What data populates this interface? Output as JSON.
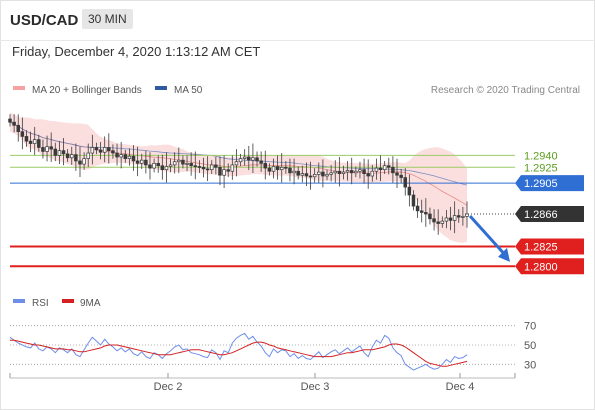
{
  "header": {
    "symbol": "USD/CAD",
    "timeframe": "30 MIN"
  },
  "date_line": "Friday, December 4, 2020 1:13:12 AM CET",
  "legend": {
    "ma_bb": "MA 20 + Bollinger Bands",
    "ma50": "MA 50",
    "rsi": "RSI",
    "rsi_ma": "9MA"
  },
  "copyright": "Research © 2020 Trading Central",
  "colors": {
    "bb": "#f4a3a3",
    "ma50": "#2f5a9e",
    "support": "#e0201e",
    "resistance": "#9ccc65",
    "pivot": "#2f6ed3",
    "current": "#333333",
    "candle": "#3a3a3a",
    "rsi": "#6e8ee8",
    "rsi_ma": "#d42020"
  },
  "chart_data": [
    {
      "type": "candlestick",
      "title": "USD/CAD 30 MIN",
      "ylim": [
        1.277,
        1.301
      ],
      "x_ticks": [
        "Dec 2",
        "Dec 3",
        "Dec 4"
      ],
      "levels": [
        {
          "name": "resistance-2",
          "value": 1.294,
          "label": "1.2940",
          "style": "resistance"
        },
        {
          "name": "resistance-1",
          "value": 1.2925,
          "label": "1.2925",
          "style": "resistance"
        },
        {
          "name": "pivot",
          "value": 1.2905,
          "label": "1.2905",
          "style": "pivot"
        },
        {
          "name": "last-price",
          "value": 1.2866,
          "label": "1.2866",
          "style": "current"
        },
        {
          "name": "support-1",
          "value": 1.2825,
          "label": "1.2825",
          "style": "support"
        },
        {
          "name": "support-2",
          "value": 1.28,
          "label": "1.2800",
          "style": "support"
        }
      ],
      "close": [
        1.2982,
        1.2978,
        1.297,
        1.2964,
        1.2958,
        1.2955,
        1.296,
        1.295,
        1.2945,
        1.2951,
        1.2948,
        1.294,
        1.2946,
        1.2942,
        1.2937,
        1.2941,
        1.2933,
        1.2929,
        1.2936,
        1.2943,
        1.295,
        1.2947,
        1.2944,
        1.295,
        1.2946,
        1.2943,
        1.2938,
        1.2941,
        1.2936,
        1.2939,
        1.2933,
        1.293,
        1.2934,
        1.2928,
        1.2924,
        1.293,
        1.2927,
        1.2922,
        1.2926,
        1.2928,
        1.2932,
        1.2934,
        1.2929,
        1.293,
        1.2927,
        1.2926,
        1.2925,
        1.2923,
        1.2922,
        1.2928,
        1.2925,
        1.2915,
        1.2922,
        1.292,
        1.2928,
        1.2932,
        1.2936,
        1.2938,
        1.2934,
        1.2937,
        1.2933,
        1.293,
        1.2924,
        1.292,
        1.2926,
        1.2922,
        1.2925,
        1.2924,
        1.2918,
        1.292,
        1.2915,
        1.2917,
        1.2914,
        1.2913,
        1.2916,
        1.2919,
        1.2914,
        1.2916,
        1.2918,
        1.292,
        1.2917,
        1.2919,
        1.2921,
        1.2918,
        1.292,
        1.2922,
        1.2917,
        1.2914,
        1.292,
        1.2924,
        1.2922,
        1.2927,
        1.2925,
        1.2918,
        1.2915,
        1.2912,
        1.29,
        1.289,
        1.2876,
        1.287,
        1.2868,
        1.2866,
        1.286,
        1.2856,
        1.2854,
        1.2857,
        1.2861,
        1.2858,
        1.2864,
        1.2862,
        1.2863,
        1.2866
      ]
    },
    {
      "type": "line",
      "title": "RSI",
      "ylim": [
        20,
        80
      ],
      "y_ticks": [
        70,
        50,
        30
      ],
      "series": [
        {
          "name": "RSI",
          "values": [
            58,
            55,
            52,
            50,
            48,
            47,
            52,
            46,
            44,
            48,
            46,
            42,
            47,
            45,
            42,
            46,
            40,
            38,
            45,
            52,
            58,
            54,
            50,
            56,
            51,
            48,
            44,
            47,
            43,
            46,
            41,
            39,
            43,
            38,
            36,
            42,
            40,
            36,
            41,
            44,
            48,
            50,
            45,
            46,
            42,
            41,
            40,
            38,
            37,
            45,
            42,
            35,
            44,
            42,
            52,
            57,
            60,
            62,
            56,
            59,
            53,
            49,
            42,
            38,
            46,
            42,
            45,
            44,
            38,
            41,
            36,
            39,
            36,
            35,
            39,
            43,
            37,
            40,
            43,
            45,
            41,
            44,
            47,
            43,
            46,
            49,
            42,
            38,
            48,
            55,
            52,
            60,
            57,
            47,
            42,
            39,
            30,
            27,
            24,
            26,
            28,
            30,
            27,
            25,
            26,
            30,
            35,
            32,
            38,
            36,
            37,
            40
          ]
        },
        {
          "name": "9MA",
          "values": [
            55,
            55,
            54,
            53,
            52,
            51,
            50,
            50,
            49,
            48,
            47,
            46,
            46,
            46,
            45,
            45,
            44,
            43,
            43,
            44,
            45,
            46,
            47,
            49,
            50,
            50,
            50,
            49,
            48,
            47,
            46,
            45,
            44,
            43,
            42,
            41,
            40,
            40,
            40,
            40,
            41,
            42,
            43,
            44,
            45,
            45,
            45,
            44,
            43,
            42,
            41,
            40,
            40,
            41,
            42,
            44,
            46,
            48,
            50,
            52,
            53,
            53,
            52,
            50,
            49,
            47,
            46,
            45,
            44,
            43,
            42,
            41,
            40,
            39,
            38,
            38,
            38,
            38,
            38,
            39,
            40,
            41,
            42,
            42,
            43,
            44,
            45,
            45,
            45,
            46,
            47,
            48,
            50,
            51,
            51,
            50,
            48,
            45,
            42,
            39,
            36,
            33,
            31,
            30,
            29,
            28,
            28,
            29,
            30,
            31,
            32,
            33
          ]
        }
      ]
    }
  ]
}
